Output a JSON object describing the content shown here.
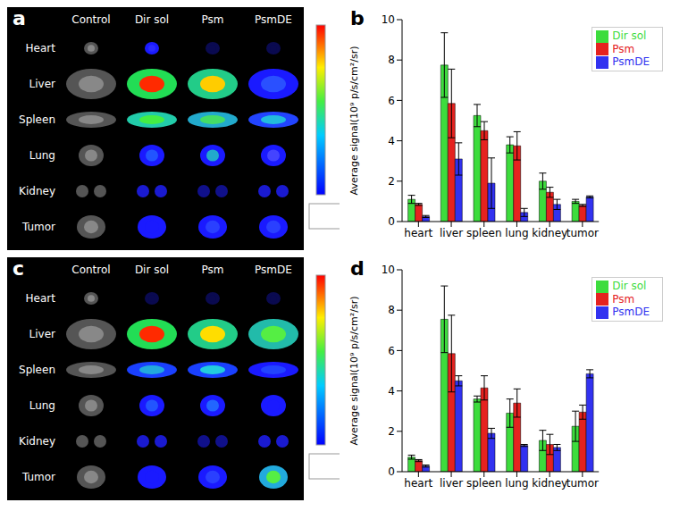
{
  "chart_data": [
    {
      "title": "b",
      "type": "bar",
      "categories": [
        "heart",
        "liver",
        "spleen",
        "lung",
        "kidney",
        "tumor"
      ],
      "y_label": "Average signal(10⁹ p/s/cm²/sr)",
      "ylim": [
        0,
        10
      ],
      "yticks": [
        0,
        2,
        4,
        6,
        8,
        10
      ],
      "legend": "upper right",
      "series": [
        {
          "name": "Dir sol",
          "color": "#3ddc3d",
          "values": [
            1.1,
            7.75,
            5.25,
            3.8,
            2.0,
            1.0
          ],
          "errors": [
            0.2,
            1.6,
            0.55,
            0.4,
            0.4,
            0.1
          ]
        },
        {
          "name": "Psm",
          "color": "#e5221f",
          "values": [
            0.85,
            5.85,
            4.5,
            3.75,
            1.45,
            0.8
          ],
          "errors": [
            0.05,
            1.7,
            0.45,
            0.7,
            0.25,
            0.05
          ]
        },
        {
          "name": "PsmDE",
          "color": "#3232f0",
          "values": [
            0.25,
            3.1,
            1.9,
            0.45,
            0.85,
            1.22
          ],
          "errors": [
            0.05,
            0.8,
            1.25,
            0.2,
            0.25,
            0.05
          ]
        }
      ]
    },
    {
      "title": "d",
      "type": "bar",
      "categories": [
        "heart",
        "liver",
        "spleen",
        "lung",
        "kidney",
        "tumor"
      ],
      "y_label": "Average signal(10⁹ p/s/cm²/sr)",
      "ylim": [
        0,
        10
      ],
      "yticks": [
        0,
        2,
        4,
        6,
        8,
        10
      ],
      "legend": "upper right",
      "series": [
        {
          "name": "Dir sol",
          "color": "#3ddc3d",
          "values": [
            0.72,
            7.55,
            3.6,
            2.9,
            1.55,
            2.25
          ],
          "errors": [
            0.1,
            1.65,
            0.15,
            0.7,
            0.5,
            0.75
          ]
        },
        {
          "name": "Psm",
          "color": "#e5221f",
          "values": [
            0.55,
            5.85,
            4.15,
            3.4,
            1.35,
            2.95
          ],
          "errors": [
            0.05,
            1.9,
            0.6,
            0.7,
            0.5,
            0.35
          ]
        },
        {
          "name": "PsmDE",
          "color": "#3232f0",
          "values": [
            0.28,
            4.5,
            1.9,
            1.3,
            1.2,
            4.85
          ],
          "errors": [
            0.05,
            0.25,
            0.25,
            0.05,
            0.15,
            0.2
          ]
        }
      ]
    }
  ],
  "images": [
    {
      "title": "a",
      "columns": [
        "Control",
        "Dir sol",
        "Psm",
        "PsmDE"
      ],
      "rows": [
        "Heart",
        "Liver",
        "Spleen",
        "Lung",
        "Kidney",
        "Tumor"
      ]
    },
    {
      "title": "c",
      "columns": [
        "Control",
        "Dir sol",
        "Psm",
        "PsmDE"
      ],
      "rows": [
        "Heart",
        "Liver",
        "Spleen",
        "Lung",
        "Kidney",
        "Tumor"
      ]
    }
  ]
}
